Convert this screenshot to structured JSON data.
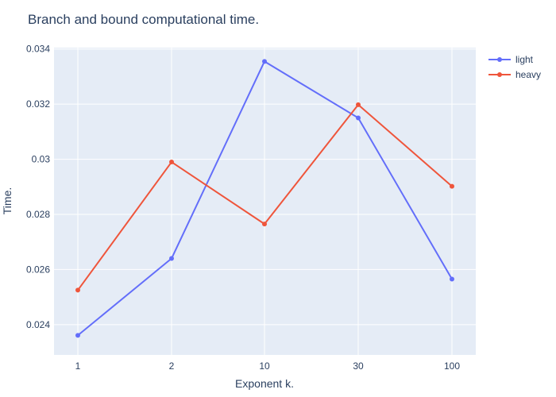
{
  "chart_data": {
    "type": "line",
    "title": "Branch and bound computational time.",
    "xlabel": "Exponent k.",
    "ylabel": "Time.",
    "categories": [
      "1",
      "2",
      "10",
      "30",
      "100"
    ],
    "ylim": [
      0.0229,
      0.03405
    ],
    "yticks": [
      0.024,
      0.026,
      0.028,
      0.03,
      0.032,
      0.034
    ],
    "ytick_labels": [
      "0.024",
      "0.026",
      "0.028",
      "0.03",
      "0.032",
      "0.034"
    ],
    "grid": true,
    "legend_position": "top-right",
    "background_color": "#e5ecf6",
    "series": [
      {
        "name": "light",
        "color": "#636efa",
        "values": [
          0.02361,
          0.0264,
          0.03355,
          0.0315,
          0.02565
        ]
      },
      {
        "name": "heavy",
        "color": "#ef553b",
        "values": [
          0.02525,
          0.0299,
          0.02765,
          0.03198,
          0.02902
        ]
      }
    ]
  }
}
